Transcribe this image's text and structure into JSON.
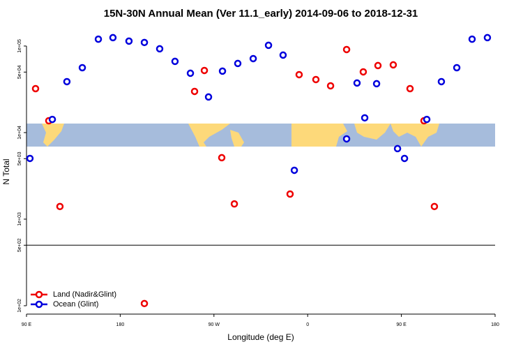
{
  "chart_data": {
    "type": "scatter",
    "title": "15N-30N Annual Mean (Ver 11.1_early)   2014-09-06 to 2018-12-31",
    "x_label": "Longitude (deg E)",
    "y_label": "N Total",
    "log_y": true,
    "reference_line": 500,
    "legend": "bottom-left",
    "xlim": [
      90,
      540
    ],
    "ylim": [
      80,
      156000
    ],
    "xticks": [
      {
        "value": 90,
        "label": "90 E"
      },
      180,
      {
        "value": 270,
        "label": "90 W"
      },
      {
        "value": 360,
        "label": "0"
      },
      {
        "value": 450,
        "label": "90 E"
      },
      {
        "value": 540,
        "label": "180"
      }
    ],
    "yticks": [
      {
        "value": 100000,
        "label": "1e+05"
      },
      {
        "value": 50000,
        "label": "5e+04"
      },
      {
        "value": 10000,
        "label": "1e+04"
      },
      {
        "value": 5000,
        "label": "5e+03"
      },
      {
        "value": 1000,
        "label": "1e+03"
      },
      {
        "value": 500,
        "label": "5e+02"
      },
      {
        "value": 100,
        "label": "1e+02"
      }
    ],
    "series": [
      {
        "name": "Land (Nadir&Glint)",
        "color": "#ee0000",
        "x": [
          98.7,
          111.4,
          122.1,
          203.2,
          251.4,
          260.8,
          277.5,
          289.6,
          343.1,
          351.8,
          367.9,
          382.0,
          397.4,
          413.4,
          427.5,
          442.2,
          458.3,
          471.7,
          481.7
        ],
        "values": [
          32200,
          13700,
          1400,
          106,
          29900,
          52200,
          5130,
          1500,
          1950,
          46700,
          41000,
          34700,
          91100,
          50300,
          59500,
          60600,
          32200,
          13700,
          1400
        ]
      },
      {
        "name": "Ocean (Glint)",
        "color": "#0000dd",
        "x": [
          93.3,
          114.8,
          128.8,
          143.6,
          159.0,
          173.0,
          188.4,
          203.2,
          217.9,
          232.6,
          247.4,
          264.8,
          278.2,
          292.9,
          307.7,
          322.4,
          336.4,
          347.2,
          397.4,
          407.4,
          414.8,
          426.2,
          446.3,
          453.0,
          474.4,
          488.4,
          503.2,
          517.9,
          532.6
        ],
        "values": [
          5030,
          14200,
          38800,
          56200,
          120000,
          125000,
          114000,
          110000,
          92900,
          66500,
          48500,
          25800,
          51300,
          62900,
          71600,
          102000,
          78600,
          3670,
          8460,
          37400,
          14800,
          36700,
          6530,
          5030,
          14200,
          38800,
          56200,
          120000,
          125000
        ]
      }
    ]
  }
}
